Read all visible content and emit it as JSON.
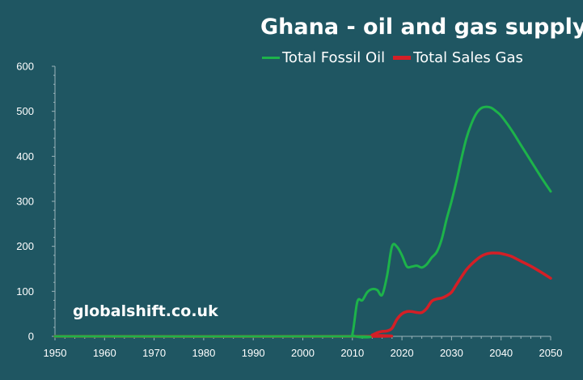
{
  "chart_data": {
    "type": "line",
    "title": "Ghana - oil and gas supply",
    "watermark": "globalshift.co.uk",
    "xlim": [
      1950,
      2050
    ],
    "ylim": [
      0,
      600
    ],
    "x_ticks": [
      1950,
      1960,
      1970,
      1980,
      1990,
      2000,
      2010,
      2020,
      2030,
      2040,
      2050
    ],
    "y_ticks": [
      0,
      100,
      200,
      300,
      400,
      500,
      600
    ],
    "grid": false,
    "legend_position": "top-right",
    "series": [
      {
        "name": "Total Fossil Oil",
        "color": "#1db34a",
        "x": [
          1950,
          2009,
          2010,
          2011,
          2012,
          2013,
          2014,
          2015,
          2016,
          2017,
          2018,
          2019,
          2020,
          2021,
          2022,
          2023,
          2024,
          2025,
          2026,
          2027,
          2028,
          2029,
          2030,
          2031,
          2032,
          2033,
          2034,
          2035,
          2036,
          2037,
          2038,
          2039,
          2040,
          2042,
          2044,
          2046,
          2048,
          2050
        ],
        "values": [
          0,
          0,
          5,
          77,
          80,
          98,
          105,
          103,
          92,
          135,
          200,
          199,
          180,
          155,
          155,
          157,
          153,
          160,
          175,
          187,
          215,
          260,
          300,
          345,
          395,
          440,
          472,
          495,
          507,
          510,
          508,
          500,
          490,
          460,
          425,
          390,
          355,
          322
        ]
      },
      {
        "name": "Total Sales Gas",
        "color": "#d41f26",
        "x": [
          1950,
          2013,
          2014,
          2015,
          2016,
          2017,
          2018,
          2019,
          2020,
          2021,
          2022,
          2023,
          2024,
          2025,
          2026,
          2027,
          2028,
          2029,
          2030,
          2031,
          2032,
          2033,
          2034,
          2035,
          2036,
          2037,
          2038,
          2039,
          2040,
          2042,
          2044,
          2046,
          2048,
          2050
        ],
        "values": [
          0,
          0,
          3,
          8,
          11,
          12,
          18,
          38,
          50,
          55,
          55,
          53,
          53,
          62,
          78,
          83,
          85,
          90,
          98,
          115,
          132,
          148,
          160,
          170,
          178,
          183,
          185,
          185,
          184,
          178,
          167,
          156,
          143,
          129
        ]
      }
    ]
  }
}
